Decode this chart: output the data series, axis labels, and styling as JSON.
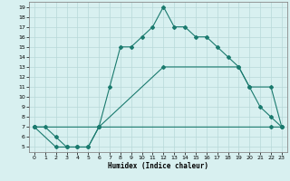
{
  "xlabel": "Humidex (Indice chaleur)",
  "bg_color": "#d8f0f0",
  "line_color": "#1a7a6e",
  "grid_color": "#b8d8d8",
  "xlim": [
    -0.5,
    23.5
  ],
  "ylim": [
    4.5,
    19.5
  ],
  "xticks": [
    0,
    1,
    2,
    3,
    4,
    5,
    6,
    7,
    8,
    9,
    10,
    11,
    12,
    13,
    14,
    15,
    16,
    17,
    18,
    19,
    20,
    21,
    22,
    23
  ],
  "yticks": [
    5,
    6,
    7,
    8,
    9,
    10,
    11,
    12,
    13,
    14,
    15,
    16,
    17,
    18,
    19
  ],
  "line1_x": [
    0,
    1,
    2,
    3,
    4,
    5,
    6,
    7,
    8,
    9,
    10,
    11,
    12,
    13,
    14,
    15,
    16,
    17,
    18,
    19,
    20,
    21,
    22,
    23
  ],
  "line1_y": [
    7,
    7,
    6,
    5,
    5,
    5,
    7,
    11,
    15,
    15,
    16,
    17,
    19,
    17,
    17,
    16,
    16,
    15,
    14,
    13,
    11,
    9,
    8,
    7
  ],
  "line2_x": [
    0,
    2,
    3,
    4,
    5,
    6,
    22,
    23
  ],
  "line2_y": [
    7,
    5,
    5,
    5,
    5,
    7,
    7,
    7
  ],
  "line3_x": [
    0,
    6,
    12,
    19,
    20,
    22,
    23
  ],
  "line3_y": [
    7,
    7,
    13,
    13,
    11,
    11,
    7
  ]
}
